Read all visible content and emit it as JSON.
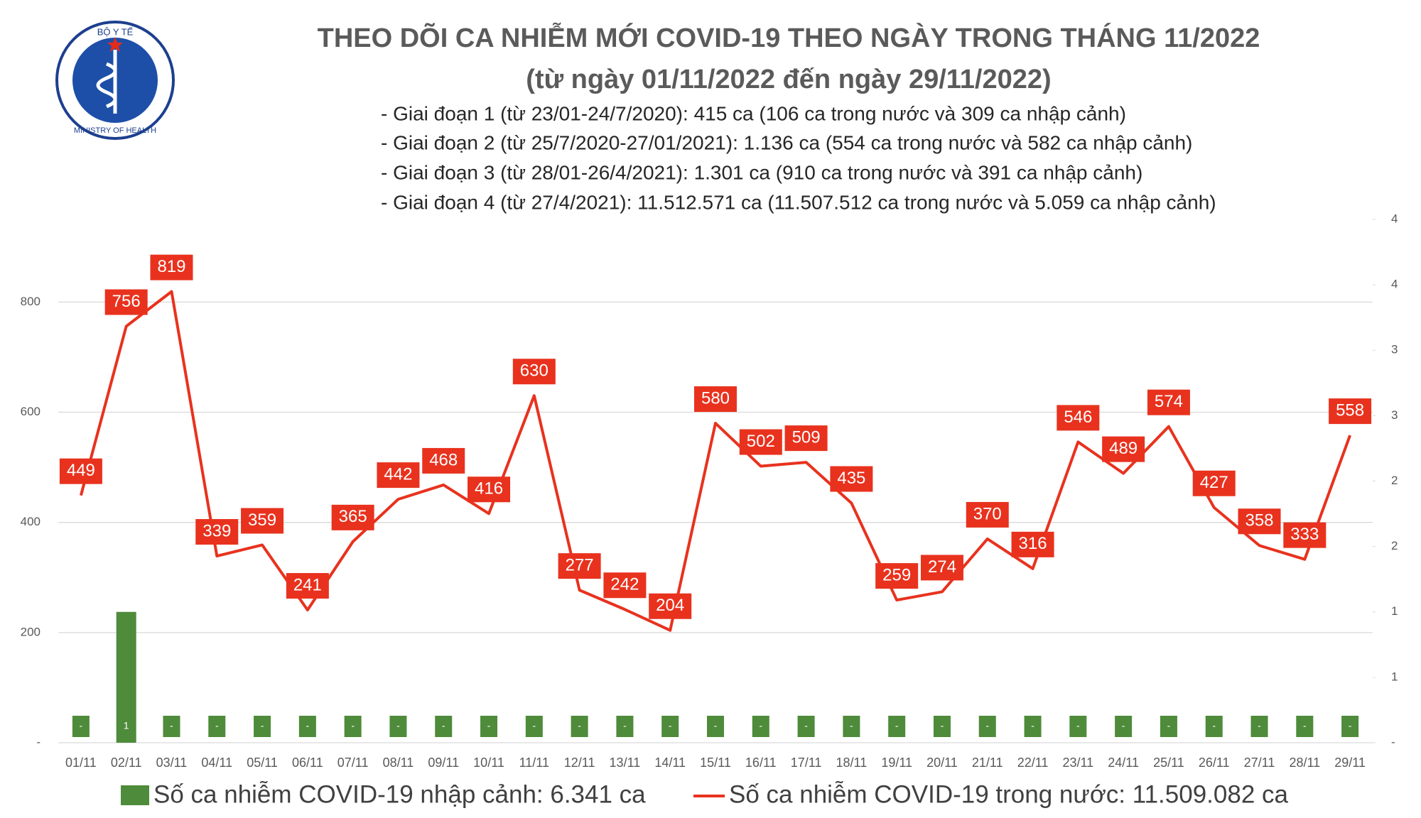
{
  "chart_data": {
    "type": "bar-line",
    "logo": [
      "BỘ Y TẾ",
      "MINISTRY OF HEALTH"
    ],
    "title": [
      "THEO DÕI CA NHIỄM MỚI COVID-19 THEO NGÀY TRONG THÁNG 11/2022",
      "(từ ngày 01/11/2022 đến ngày 29/11/2022)"
    ],
    "subtitle": [
      "- Giai đoạn 1 (từ 23/01-24/7/2020): 415 ca (106 ca trong nước và 309 ca nhập cảnh)",
      "- Giai đoạn 2 (từ 25/7/2020-27/01/2021): 1.136 ca (554 ca trong nước và 582 ca nhập cảnh)",
      "- Giai đoạn 3 (từ 28/01-26/4/2021): 1.301 ca (910 ca trong nước và 391 ca nhập cảnh)",
      "- Giai đoạn 4 (từ 27/4/2021): 11.512.571 ca (11.507.512 ca trong nước và 5.059 ca nhập cảnh)"
    ],
    "categories": [
      "01/11",
      "02/11",
      "03/11",
      "04/11",
      "05/11",
      "06/11",
      "07/11",
      "08/11",
      "09/11",
      "10/11",
      "11/11",
      "12/11",
      "13/11",
      "14/11",
      "15/11",
      "16/11",
      "17/11",
      "18/11",
      "19/11",
      "20/11",
      "21/11",
      "22/11",
      "23/11",
      "24/11",
      "25/11",
      "26/11",
      "27/11",
      "28/11",
      "29/11"
    ],
    "series": [
      {
        "name": "Số ca nhiễm COVID-19 nhập cảnh: 6.341 ca",
        "type": "bar",
        "axis": "y2",
        "color": "#4e8b3a",
        "values": [
          0,
          1,
          0,
          0,
          0,
          0,
          0,
          0,
          0,
          0,
          0,
          0,
          0,
          0,
          0,
          0,
          0,
          0,
          0,
          0,
          0,
          0,
          0,
          0,
          0,
          0,
          0,
          0,
          0
        ],
        "value_labels": [
          "-",
          "1",
          "-",
          "-",
          "-",
          "-",
          "-",
          "-",
          "-",
          "-",
          "-",
          "-",
          "-",
          "-",
          "-",
          "-",
          "-",
          "-",
          "-",
          "-",
          "-",
          "-",
          "-",
          "-",
          "-",
          "-",
          "-",
          "-",
          "-"
        ]
      },
      {
        "name": "Số ca nhiễm COVID-19 trong nước: 11.509.082 ca",
        "type": "line",
        "color": "#e8321e",
        "values": [
          449,
          756,
          819,
          339,
          359,
          241,
          365,
          442,
          468,
          416,
          630,
          277,
          242,
          204,
          580,
          502,
          509,
          435,
          259,
          274,
          370,
          316,
          546,
          489,
          574,
          427,
          358,
          333,
          558
        ]
      }
    ],
    "ylim": [
      0,
      950
    ],
    "yticks": [
      {
        "value": 0,
        "label": "-"
      },
      200,
      400,
      600,
      800
    ],
    "y2lim": [
      0,
      4
    ],
    "y2ticks": [
      {
        "value": 0,
        "label": "-"
      },
      {
        "value": 0.5,
        "label": "1"
      },
      1,
      {
        "value": 1.5,
        "label": "2"
      },
      2,
      {
        "value": 2.5,
        "label": "3"
      },
      3,
      {
        "value": 3.5,
        "label": "4"
      },
      4
    ],
    "grid": true
  }
}
